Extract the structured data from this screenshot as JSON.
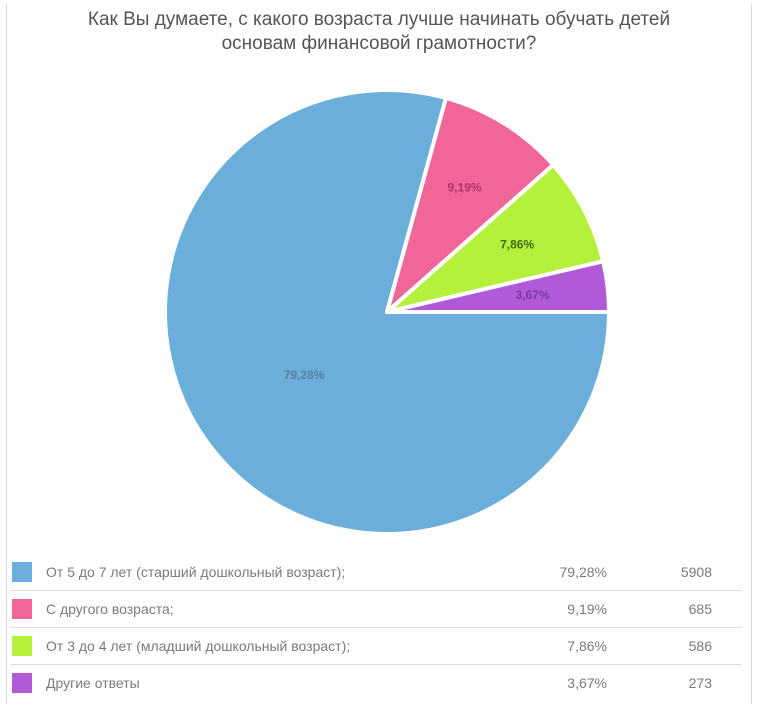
{
  "chart_data": {
    "type": "pie",
    "title_lines": [
      "Как Вы думаете, с какого возраста лучше начинать обучать детей",
      "основам финансовой грамотности?"
    ],
    "slices": [
      {
        "label": "От 5 до 7 лет (старший дошкольный возраст);",
        "value": 79.28,
        "pct_label": "79,28%",
        "count": "5908",
        "color": "#6aaed9"
      },
      {
        "label": "С другого возраста;",
        "value": 9.19,
        "pct_label": "9,19%",
        "count": "685",
        "color": "#f06699"
      },
      {
        "label": "От 3 до 4 лет (младший дошкольный возраст);",
        "value": 7.86,
        "pct_label": "7,86%",
        "count": "586",
        "color": "#b4f03c"
      },
      {
        "label": "Другие ответы",
        "value": 3.67,
        "pct_label": "3,67%",
        "count": "273",
        "color": "#b15ad9"
      }
    ],
    "label_colors": [
      "#5a7fa0",
      "#b0336a",
      "#4a6a1a",
      "#7a3aa0"
    ]
  }
}
